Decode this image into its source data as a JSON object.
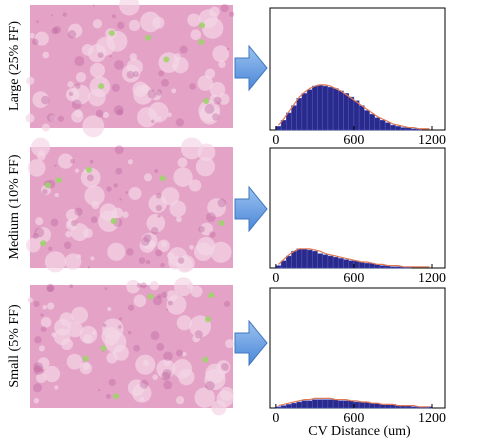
{
  "chart_data": [
    {
      "type": "histogram",
      "label": "Large (25% FF)",
      "bins": [
        0,
        40,
        80,
        120,
        160,
        200,
        240,
        280,
        320,
        360,
        400,
        440,
        480,
        520,
        560,
        600,
        640,
        680,
        720,
        760,
        800,
        840,
        880,
        920,
        960,
        1000,
        1040,
        1080,
        1120,
        1160,
        1200
      ],
      "values": [
        3,
        8,
        14,
        20,
        26,
        30,
        33,
        36,
        37,
        36,
        35,
        34,
        32,
        30,
        27,
        24,
        20,
        16,
        13,
        10,
        8,
        6,
        4,
        3,
        2,
        2,
        1,
        1,
        0,
        0
      ],
      "fit": [
        4,
        9,
        15,
        21,
        27,
        31,
        34,
        36,
        37,
        37,
        36,
        34,
        32,
        29,
        26,
        23,
        20,
        17,
        14,
        11,
        9,
        7,
        5,
        4,
        3,
        2,
        2,
        1,
        1,
        1
      ],
      "color": "#2b2a8a",
      "fit_color": "#e07a55",
      "xlim": [
        -45,
        1300
      ],
      "ylim": [
        0,
        100
      ],
      "xticks": [
        0,
        600,
        1200
      ]
    },
    {
      "type": "histogram",
      "label": "Medium (10% FF)",
      "bins": [
        0,
        40,
        80,
        120,
        160,
        200,
        240,
        280,
        320,
        360,
        400,
        440,
        480,
        520,
        560,
        600,
        640,
        680,
        720,
        760,
        800,
        840,
        880,
        920,
        960,
        1000,
        1040,
        1080,
        1120,
        1160,
        1200
      ],
      "values": [
        2,
        6,
        10,
        14,
        16,
        16,
        15,
        14,
        12,
        11,
        10,
        9,
        8,
        7,
        6,
        6,
        5,
        4,
        4,
        3,
        2,
        2,
        1,
        1,
        1,
        1,
        0,
        0,
        0,
        0
      ],
      "fit": [
        3,
        7,
        11,
        14,
        16,
        16,
        16,
        15,
        14,
        12,
        11,
        10,
        9,
        8,
        7,
        6,
        5,
        5,
        4,
        3,
        3,
        2,
        2,
        2,
        1,
        1,
        1,
        1,
        1,
        1
      ],
      "color": "#2b2a8a",
      "fit_color": "#e07a55",
      "xlim": [
        -45,
        1300
      ],
      "ylim": [
        0,
        100
      ],
      "xticks": [
        0,
        600,
        1200
      ]
    },
    {
      "type": "histogram",
      "label": "Small (5% FF)",
      "bins": [
        0,
        40,
        80,
        120,
        160,
        200,
        240,
        280,
        320,
        360,
        400,
        440,
        480,
        520,
        560,
        600,
        640,
        680,
        720,
        760,
        800,
        840,
        880,
        920,
        960,
        1000,
        1040,
        1080,
        1120,
        1160,
        1200
      ],
      "values": [
        1,
        2,
        3,
        4,
        5,
        6,
        6,
        7,
        7,
        7,
        7,
        7,
        6,
        6,
        6,
        5,
        5,
        5,
        4,
        4,
        3,
        3,
        3,
        2,
        2,
        2,
        1,
        1,
        1,
        1
      ],
      "fit": [
        2,
        3,
        4,
        5,
        6,
        7,
        7,
        8,
        8,
        8,
        8,
        7,
        7,
        7,
        6,
        6,
        5,
        5,
        4,
        4,
        3,
        3,
        3,
        2,
        2,
        2,
        2,
        1,
        1,
        1
      ],
      "color": "#2b2a8a",
      "fit_color": "#e07a55",
      "xlim": [
        -45,
        1300
      ],
      "ylim": [
        0,
        100
      ],
      "xticks": [
        0,
        600,
        1200
      ],
      "xlabel": "CV Distance (um)"
    }
  ]
}
